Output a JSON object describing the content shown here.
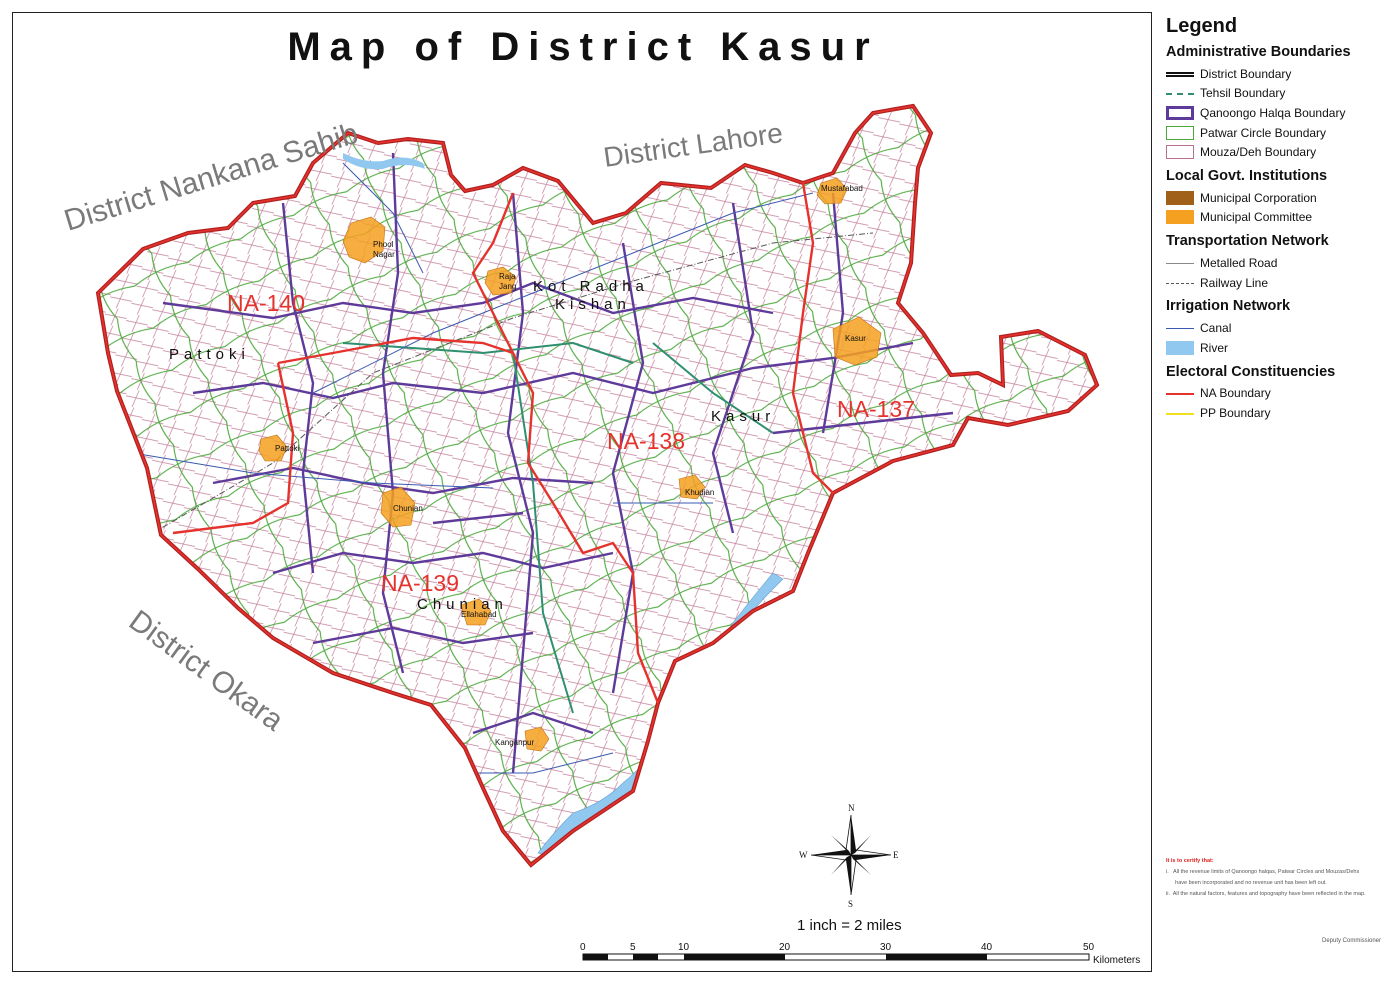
{
  "map": {
    "title": "Map of District Kasur",
    "neighbors": [
      {
        "id": "nankana",
        "label": "District Nankana Sahib"
      },
      {
        "id": "lahore",
        "label": "District Lahore"
      },
      {
        "id": "okara",
        "label": "District Okara"
      }
    ],
    "constituencies": [
      "NA-140",
      "NA-139",
      "NA-138",
      "NA-137"
    ],
    "tehsils": [
      "Pattoki",
      "Chunian",
      "Kot Radha Kishan",
      "Kasur"
    ],
    "tehsil_line2": {
      "kot_radha": "Kishan"
    },
    "tehsil_line1": {
      "kot_radha": "Kot Radha"
    },
    "towns": [
      {
        "name": "Phool Nagar",
        "line1": "Phool",
        "line2": "Nagar"
      },
      {
        "name": "Raja Jang",
        "line1": "Raja",
        "line2": "Jang"
      },
      {
        "name": "Mustafabad"
      },
      {
        "name": "Kasur"
      },
      {
        "name": "Pattoki"
      },
      {
        "name": "Chunian"
      },
      {
        "name": "Khudian"
      },
      {
        "name": "Ellahabad"
      },
      {
        "name": "Kanganpur"
      }
    ],
    "scale_text": "1 inch = 2 miles",
    "scale_ticks": [
      "0",
      "5",
      "10",
      "20",
      "30",
      "40",
      "50"
    ],
    "scale_unit": "Kilometers",
    "compass": {
      "n": "N",
      "s": "S",
      "e": "E",
      "w": "W"
    },
    "colors": {
      "na_boundary": "#e5322c",
      "qanoongo": "#5e3a9a",
      "patwar": "#4aa83a",
      "mouza": "#b87090",
      "tehsil": "#2f8f6f",
      "municipal_committee": "#f5a020",
      "municipal_corporation": "#a0601a",
      "river": "#90c8f0",
      "canal": "#3a5ab0",
      "neighbor_label": "#7a7a7a"
    }
  },
  "legend": {
    "title": "Legend",
    "sections": [
      {
        "heading": "Administrative Boundaries",
        "items": [
          {
            "label": "District Boundary",
            "symbol": "double-black-line"
          },
          {
            "label": "Tehsil Boundary",
            "symbol": "green-dash-line"
          },
          {
            "label": "Qanoongo Halqa Boundary",
            "symbol": "purple-box"
          },
          {
            "label": "Patwar Circle Boundary",
            "symbol": "green-box"
          },
          {
            "label": "Mouza/Deh Boundary",
            "symbol": "pink-box"
          }
        ]
      },
      {
        "heading": "Local Govt. Institutions",
        "items": [
          {
            "label": "Municipal Corporation",
            "symbol": "brown-fill"
          },
          {
            "label": "Municipal Committee",
            "symbol": "orange-fill"
          }
        ]
      },
      {
        "heading": "Transportation Network",
        "items": [
          {
            "label": "Metalled Road",
            "symbol": "grey-line"
          },
          {
            "label": "Railway Line",
            "symbol": "dash-dot-line"
          }
        ]
      },
      {
        "heading": "Irrigation Network",
        "items": [
          {
            "label": "Canal",
            "symbol": "blue-line"
          },
          {
            "label": "River",
            "symbol": "blue-fill"
          }
        ]
      },
      {
        "heading": "Electoral Constituencies",
        "items": [
          {
            "label": "NA Boundary",
            "symbol": "red-line"
          },
          {
            "label": "PP Boundary",
            "symbol": "yellow-line"
          }
        ]
      }
    ]
  },
  "certificate": {
    "heading": "It is to certify that:",
    "lines": [
      "i.   All the revenue limits of Qanoongo halqas, Patwar Circles and Mouzas/Dehs",
      "      have been incorporated and no revenue unit has been left out.",
      "ii.  All the natural factors, features and topography have been reflected in the map."
    ],
    "signature": "Deputy Commissioner"
  }
}
